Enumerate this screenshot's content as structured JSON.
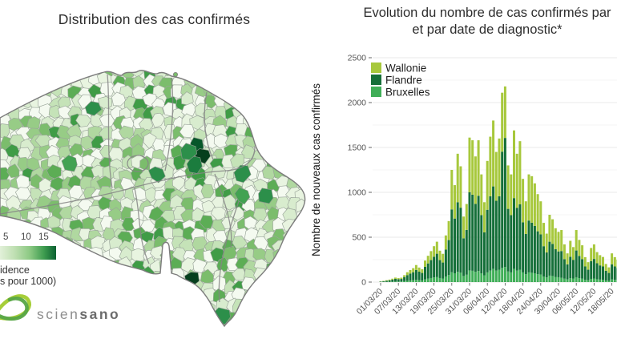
{
  "page": {
    "title_left": "Distribution des cas confirmés",
    "title_right_line1": "Evolution du nombre de cas confirmés par",
    "title_right_line2": "et par date de diagnostic*"
  },
  "map_panel": {
    "legend": {
      "tick_labels": [
        "5",
        "10",
        "15"
      ],
      "caption_line1": "idence",
      "caption_line2": "s pour 1000)"
    },
    "logo": {
      "text_light": "scien",
      "text_bold": "sano"
    }
  },
  "chart_panel": {
    "y_axis_label": "Nombre de nouveaux cas confirmés"
  },
  "chart_data": [
    {
      "type": "choropleth",
      "title": "Distribution des cas confirmés",
      "legend": {
        "ticks": [
          5,
          10,
          15
        ],
        "caption_visible": "idence / s pour 1000)"
      },
      "palette": [
        "#f4faf0",
        "#e8f4e0",
        "#d8ecce",
        "#c5e3b8",
        "#b0d8a0",
        "#97cc86",
        "#7bbd6c",
        "#5cad55",
        "#3f9c46"
      ],
      "border_color": "#7d7d7d",
      "hotspots": [
        [
          246,
          96,
          "#07572a"
        ],
        [
          252,
          109,
          "#053f1d"
        ],
        [
          243,
          121,
          "#1b7c3e"
        ],
        [
          235,
          105,
          "#2c8f4a"
        ],
        [
          115,
          50,
          "#2c8f4a"
        ],
        [
          302,
          131,
          "#2c8f4a"
        ],
        [
          332,
          160,
          "#2c8f4a"
        ],
        [
          303,
          159,
          "#42a252"
        ],
        [
          240,
          263,
          "#053f1d"
        ],
        [
          311,
          297,
          "#55ab55"
        ],
        [
          277,
          309,
          "#2c8f4a"
        ],
        [
          360,
          122,
          "#42a252"
        ],
        [
          196,
          132,
          "#2c8f4a"
        ],
        [
          88,
          118,
          "#42a252"
        ]
      ]
    },
    {
      "type": "bar",
      "stacked": true,
      "title_line1": "Evolution du nombre de cas confirmés par",
      "title_line2": "et par date de diagnostic*",
      "ylabel": "Nombre de nouveaux cas confirmés",
      "ylim": [
        0,
        2500
      ],
      "yticks": [
        0,
        500,
        1000,
        1500,
        2000,
        2500
      ],
      "grid": true,
      "legend": {
        "position": "top-left-inside",
        "entries": [
          "Wallonie",
          "Flandre",
          "Bruxelles"
        ]
      },
      "stack_bottom_to_top": [
        "Bruxelles",
        "Flandre",
        "Wallonie"
      ],
      "x_tick_labels": [
        "01/03/20",
        "07/03/20",
        "13/03/20",
        "19/03/20",
        "25/03/20",
        "31/03/20",
        "06/04/20",
        "12/04/20",
        "18/04/20",
        "24/04/20",
        "30/04/20",
        "06/05/20",
        "12/05/20",
        "18/05/20"
      ],
      "x_tick_every": 6,
      "categories": [
        "01/03/20",
        "02/03/20",
        "03/03/20",
        "04/03/20",
        "05/03/20",
        "06/03/20",
        "07/03/20",
        "08/03/20",
        "09/03/20",
        "10/03/20",
        "11/03/20",
        "12/03/20",
        "13/03/20",
        "14/03/20",
        "15/03/20",
        "16/03/20",
        "17/03/20",
        "18/03/20",
        "19/03/20",
        "20/03/20",
        "21/03/20",
        "22/03/20",
        "23/03/20",
        "24/03/20",
        "25/03/20",
        "26/03/20",
        "27/03/20",
        "28/03/20",
        "29/03/20",
        "30/03/20",
        "31/03/20",
        "01/04/20",
        "02/04/20",
        "03/04/20",
        "04/04/20",
        "05/04/20",
        "06/04/20",
        "07/04/20",
        "08/04/20",
        "09/04/20",
        "10/04/20",
        "11/04/20",
        "12/04/20",
        "13/04/20",
        "14/04/20",
        "15/04/20",
        "16/04/20",
        "17/04/20",
        "18/04/20",
        "19/04/20",
        "20/04/20",
        "21/04/20",
        "22/04/20",
        "23/04/20",
        "24/04/20",
        "25/04/20",
        "26/04/20",
        "27/04/20",
        "28/04/20",
        "29/04/20",
        "30/04/20",
        "01/05/20",
        "02/05/20",
        "03/05/20",
        "04/05/20",
        "05/05/20",
        "06/05/20",
        "07/05/20",
        "08/05/20",
        "09/05/20",
        "10/05/20",
        "11/05/20",
        "12/05/20",
        "13/05/20",
        "14/05/20",
        "15/05/20",
        "16/05/20",
        "17/05/20",
        "18/05/20",
        "19/05/20",
        "20/05/20"
      ],
      "series": [
        {
          "name": "Wallonie",
          "color": "#a7c83c",
          "values": [
            3,
            4,
            6,
            8,
            11,
            14,
            12,
            14,
            21,
            32,
            38,
            45,
            55,
            46,
            41,
            70,
            85,
            100,
            118,
            134,
            105,
            97,
            158,
            212,
            440,
            372,
            540,
            461,
            242,
            288,
            610,
            606,
            528,
            618,
            454,
            336,
            544,
            664,
            734,
            544,
            644,
            657,
            574,
            484,
            454,
            754,
            604,
            704,
            484,
            364,
            514,
            518,
            474,
            414,
            368,
            260,
            210,
            300,
            274,
            234,
            218,
            234,
            164,
            122,
            178,
            142,
            228,
            178,
            154,
            104,
            84,
            146,
            162,
            124,
            114,
            106,
            76,
            62,
            122,
            104,
            94
          ]
        },
        {
          "name": "Flandre",
          "color": "#156f39",
          "values": [
            5,
            8,
            12,
            16,
            22,
            30,
            26,
            28,
            46,
            64,
            78,
            90,
            110,
            95,
            84,
            140,
            170,
            200,
            230,
            258,
            200,
            178,
            300,
            390,
            700,
            610,
            775,
            725,
            420,
            500,
            870,
            848,
            758,
            838,
            648,
            478,
            698,
            828,
            918,
            778,
            818,
            1295,
            1438,
            698,
            638,
            788,
            698,
            728,
            558,
            448,
            578,
            558,
            528,
            478,
            448,
            338,
            278,
            378,
            358,
            308,
            288,
            298,
            218,
            168,
            238,
            208,
            298,
            248,
            218,
            148,
            118,
            198,
            218,
            178,
            158,
            148,
            108,
            88,
            168,
            148,
            132
          ]
        },
        {
          "name": "Bruxelles",
          "color": "#3fae57",
          "values": [
            2,
            2,
            3,
            4,
            5,
            6,
            6,
            7,
            10,
            14,
            18,
            20,
            25,
            21,
            18,
            30,
            38,
            45,
            52,
            58,
            45,
            40,
            62,
            78,
            110,
            98,
            115,
            104,
            68,
            82,
            130,
            126,
            114,
            124,
            98,
            76,
            108,
            128,
            148,
            128,
            138,
            158,
            168,
            118,
            108,
            148,
            128,
            138,
            108,
            88,
            108,
            104,
            98,
            88,
            84,
            62,
            52,
            72,
            68,
            58,
            54,
            48,
            38,
            30,
            44,
            40,
            54,
            44,
            38,
            26,
            20,
            36,
            40,
            32,
            28,
            26,
            18,
            14,
            30,
            26,
            24
          ]
        }
      ]
    }
  ]
}
